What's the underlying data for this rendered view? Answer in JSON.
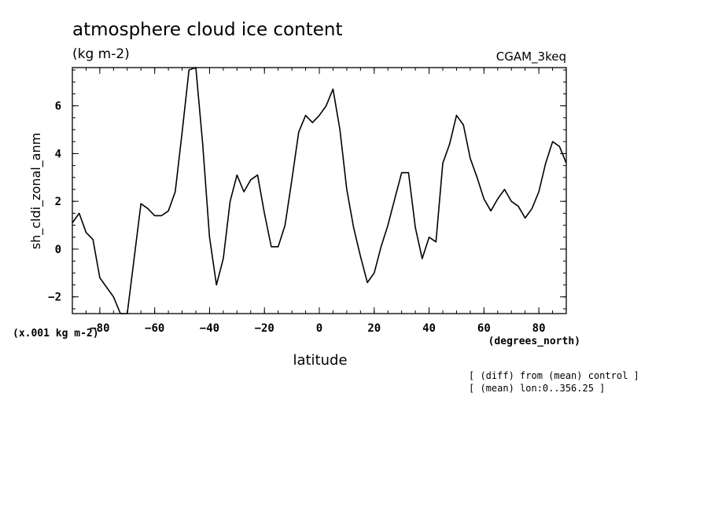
{
  "chart_data": {
    "type": "line",
    "title": "atmosphere cloud ice content",
    "units": "(kg m-2)",
    "model_label": "CGAM_3keq",
    "ylabel": "sh_cldi_zonal_anm",
    "xlabel": "latitude",
    "xunits": "(degrees_north)",
    "yscale_note": "(x.001 kg m-2)",
    "notes": [
      "[ (diff) from (mean) control ]",
      "[ (mean) lon:0..356.25 ]"
    ],
    "xlim": [
      -90,
      90
    ],
    "ylim": [
      -2.7,
      7.6
    ],
    "xticks": [
      -80,
      -60,
      -40,
      -20,
      0,
      20,
      40,
      60,
      80
    ],
    "yticks": [
      -2,
      0,
      2,
      4,
      6
    ],
    "series": [
      {
        "name": "sh_cldi_zonal_anm",
        "x": [
          -90,
          -87.5,
          -85,
          -82.5,
          -80,
          -77.5,
          -75,
          -72.5,
          -70,
          -67.5,
          -65,
          -62.5,
          -60,
          -57.5,
          -55,
          -52.5,
          -50,
          -47.5,
          -45,
          -42.5,
          -40,
          -37.5,
          -35,
          -32.5,
          -30,
          -27.5,
          -25,
          -22.5,
          -20,
          -17.5,
          -15,
          -12.5,
          -10,
          -7.5,
          -5,
          -2.5,
          0,
          2.5,
          5,
          7.5,
          10,
          12.5,
          15,
          17.5,
          20,
          22.5,
          25,
          27.5,
          30,
          32.5,
          35,
          37.5,
          40,
          42.5,
          45,
          47.5,
          50,
          52.5,
          55,
          57.5,
          60,
          62.5,
          65,
          67.5,
          70,
          72.5,
          75,
          77.5,
          80,
          82.5,
          85,
          87.5,
          90
        ],
        "y": [
          1.1,
          1.5,
          0.7,
          0.4,
          -1.2,
          -1.6,
          -2.0,
          -2.7,
          -2.7,
          -0.4,
          1.9,
          1.7,
          1.4,
          1.4,
          1.6,
          2.4,
          4.9,
          7.5,
          7.6,
          4.4,
          0.5,
          -1.5,
          -0.4,
          2.0,
          3.1,
          2.4,
          2.9,
          3.1,
          1.5,
          0.1,
          0.1,
          1.0,
          2.9,
          4.9,
          5.6,
          5.3,
          5.6,
          6.0,
          6.7,
          5.0,
          2.5,
          0.9,
          -0.3,
          -1.4,
          -1.0,
          0.1,
          1.0,
          2.1,
          3.2,
          3.2,
          0.9,
          -0.4,
          0.5,
          0.3,
          3.6,
          4.4,
          5.6,
          5.2,
          3.8,
          3.0,
          2.1,
          1.6,
          2.1,
          2.5,
          2.0,
          1.8,
          1.3,
          1.7,
          2.4,
          3.6,
          4.5,
          4.3,
          3.6
        ]
      }
    ]
  }
}
